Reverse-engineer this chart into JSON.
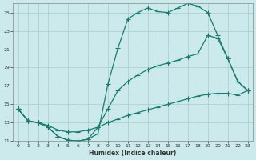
{
  "xlabel": "Humidex (Indice chaleur)",
  "bg_color": "#cce9ec",
  "grid_color": "#a8ccce",
  "line_color": "#1a7a6e",
  "xlim": [
    -0.5,
    23.5
  ],
  "ylim": [
    11,
    26
  ],
  "xticks": [
    0,
    1,
    2,
    3,
    4,
    5,
    6,
    7,
    8,
    9,
    10,
    11,
    12,
    13,
    14,
    15,
    16,
    17,
    18,
    19,
    20,
    21,
    22,
    23
  ],
  "yticks": [
    11,
    13,
    15,
    17,
    19,
    21,
    23,
    25
  ],
  "line1_x": [
    0,
    1,
    2,
    3,
    4,
    5,
    6,
    7,
    8,
    9,
    10,
    11,
    12,
    13,
    14,
    15,
    16,
    17,
    18,
    19,
    20,
    21,
    22,
    23
  ],
  "line1_y": [
    14.5,
    13.2,
    13.0,
    12.5,
    11.5,
    11.1,
    11.0,
    11.2,
    11.8,
    17.2,
    21.1,
    24.3,
    25.0,
    25.5,
    25.1,
    25.0,
    25.5,
    26.0,
    25.7,
    25.0,
    22.5,
    20.0,
    17.5,
    16.5
  ],
  "line2_x": [
    0,
    1,
    2,
    3,
    4,
    5,
    6,
    7,
    8,
    9,
    10,
    11,
    12,
    13,
    14,
    15,
    16,
    17,
    18,
    19,
    20,
    21,
    22,
    23
  ],
  "line2_y": [
    14.5,
    13.2,
    13.0,
    12.5,
    11.5,
    11.1,
    11.0,
    11.2,
    12.5,
    14.5,
    16.5,
    17.5,
    18.2,
    18.8,
    19.2,
    19.5,
    19.8,
    20.2,
    20.5,
    22.5,
    22.2,
    20.0,
    17.5,
    16.5
  ],
  "line3_x": [
    0,
    1,
    2,
    3,
    4,
    5,
    6,
    7,
    8,
    9,
    10,
    11,
    12,
    13,
    14,
    15,
    16,
    17,
    18,
    19,
    20,
    21,
    22,
    23
  ],
  "line3_y": [
    14.5,
    13.2,
    13.0,
    12.7,
    12.2,
    12.0,
    12.0,
    12.2,
    12.5,
    13.0,
    13.4,
    13.8,
    14.1,
    14.4,
    14.7,
    15.0,
    15.3,
    15.6,
    15.9,
    16.1,
    16.2,
    16.2,
    16.0,
    16.5
  ]
}
